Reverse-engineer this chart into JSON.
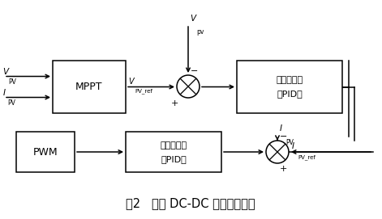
{
  "fig_width": 4.71,
  "fig_height": 2.71,
  "dpi": 100,
  "bg_color": "#ffffff",
  "title": "图2   光伏 DC-DC 模块控制策略",
  "title_fontsize": 10.5,
  "mppt_label": "MPPT",
  "volt_reg_line1": "电压调节器",
  "volt_reg_line2": "（PID）",
  "curr_reg_line1": "电流调节器",
  "curr_reg_line2": "（PID）",
  "pwm_label": "PWM"
}
